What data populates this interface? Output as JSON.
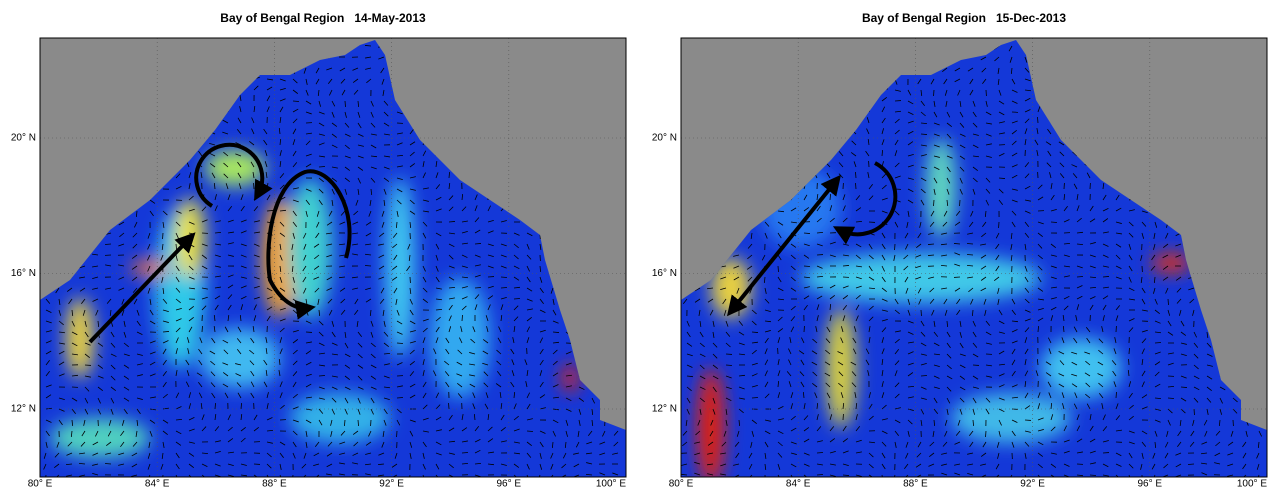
{
  "panels": [
    {
      "title": "Bay of Bengal Region   14-May-2013",
      "x_labels": [
        "80° E",
        "84° E",
        "88° E",
        "92° E",
        "96° E",
        "100° E"
      ],
      "y_labels": [
        "20° N",
        "16° N",
        "12° N"
      ]
    },
    {
      "title": "Bay of Bengal Region   15-Dec-2013",
      "x_labels": [
        "80° E",
        "84° E",
        "88° E",
        "92° E",
        "96° E",
        "100° E"
      ],
      "y_labels": [
        "20° N",
        "16° N",
        "12° N"
      ]
    }
  ]
}
